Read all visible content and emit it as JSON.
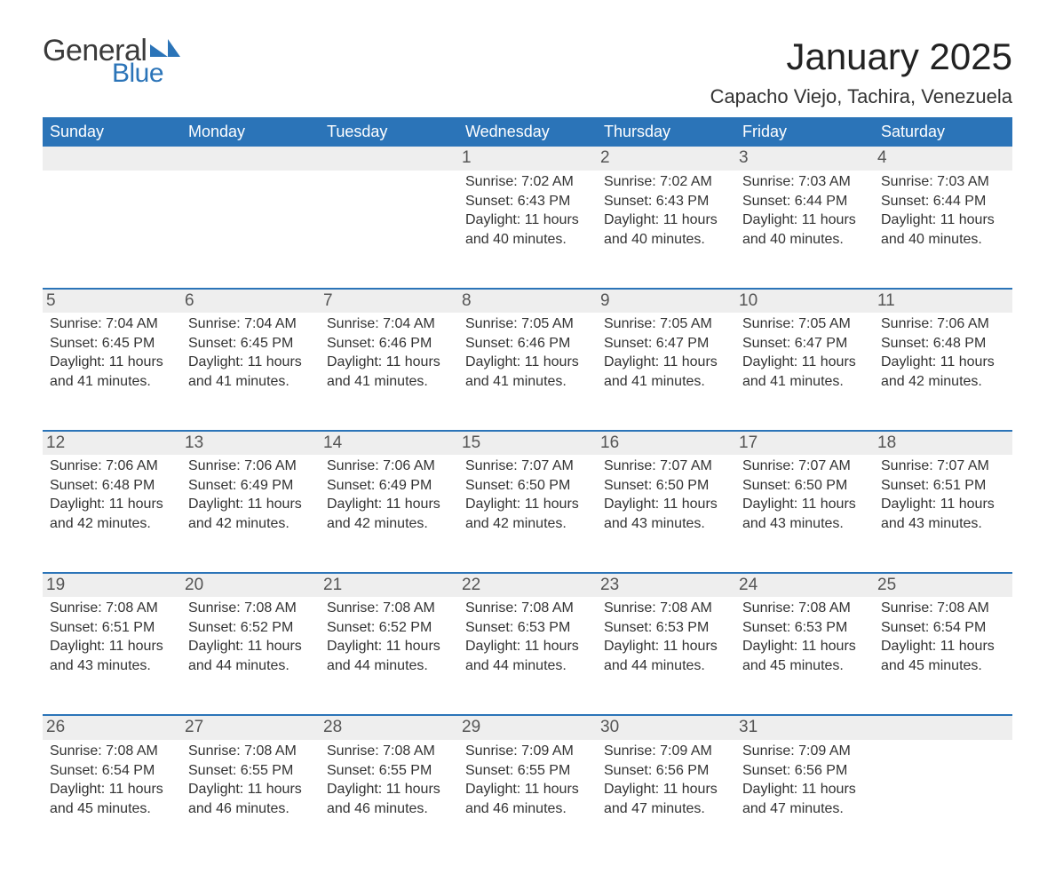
{
  "logo": {
    "word1": "General",
    "word2": "Blue",
    "brand_color": "#2b74b8",
    "text_color": "#3a3a3a"
  },
  "title": "January 2025",
  "subtitle": "Capacho Viejo, Tachira, Venezuela",
  "colors": {
    "header_bg": "#2b74b8",
    "header_text": "#ffffff",
    "daynum_bg": "#eeeeee",
    "rule": "#2b74b8",
    "body_text": "#333333",
    "page_bg": "#ffffff"
  },
  "fonts": {
    "title_size_pt": 32,
    "subtitle_size_pt": 17,
    "dow_size_pt": 14,
    "daynum_size_pt": 14,
    "info_size_pt": 12
  },
  "days_of_week": [
    "Sunday",
    "Monday",
    "Tuesday",
    "Wednesday",
    "Thursday",
    "Friday",
    "Saturday"
  ],
  "weeks": [
    [
      null,
      null,
      null,
      {
        "n": "1",
        "sunrise": "Sunrise: 7:02 AM",
        "sunset": "Sunset: 6:43 PM",
        "daylight": "Daylight: 11 hours and 40 minutes."
      },
      {
        "n": "2",
        "sunrise": "Sunrise: 7:02 AM",
        "sunset": "Sunset: 6:43 PM",
        "daylight": "Daylight: 11 hours and 40 minutes."
      },
      {
        "n": "3",
        "sunrise": "Sunrise: 7:03 AM",
        "sunset": "Sunset: 6:44 PM",
        "daylight": "Daylight: 11 hours and 40 minutes."
      },
      {
        "n": "4",
        "sunrise": "Sunrise: 7:03 AM",
        "sunset": "Sunset: 6:44 PM",
        "daylight": "Daylight: 11 hours and 40 minutes."
      }
    ],
    [
      {
        "n": "5",
        "sunrise": "Sunrise: 7:04 AM",
        "sunset": "Sunset: 6:45 PM",
        "daylight": "Daylight: 11 hours and 41 minutes."
      },
      {
        "n": "6",
        "sunrise": "Sunrise: 7:04 AM",
        "sunset": "Sunset: 6:45 PM",
        "daylight": "Daylight: 11 hours and 41 minutes."
      },
      {
        "n": "7",
        "sunrise": "Sunrise: 7:04 AM",
        "sunset": "Sunset: 6:46 PM",
        "daylight": "Daylight: 11 hours and 41 minutes."
      },
      {
        "n": "8",
        "sunrise": "Sunrise: 7:05 AM",
        "sunset": "Sunset: 6:46 PM",
        "daylight": "Daylight: 11 hours and 41 minutes."
      },
      {
        "n": "9",
        "sunrise": "Sunrise: 7:05 AM",
        "sunset": "Sunset: 6:47 PM",
        "daylight": "Daylight: 11 hours and 41 minutes."
      },
      {
        "n": "10",
        "sunrise": "Sunrise: 7:05 AM",
        "sunset": "Sunset: 6:47 PM",
        "daylight": "Daylight: 11 hours and 41 minutes."
      },
      {
        "n": "11",
        "sunrise": "Sunrise: 7:06 AM",
        "sunset": "Sunset: 6:48 PM",
        "daylight": "Daylight: 11 hours and 42 minutes."
      }
    ],
    [
      {
        "n": "12",
        "sunrise": "Sunrise: 7:06 AM",
        "sunset": "Sunset: 6:48 PM",
        "daylight": "Daylight: 11 hours and 42 minutes."
      },
      {
        "n": "13",
        "sunrise": "Sunrise: 7:06 AM",
        "sunset": "Sunset: 6:49 PM",
        "daylight": "Daylight: 11 hours and 42 minutes."
      },
      {
        "n": "14",
        "sunrise": "Sunrise: 7:06 AM",
        "sunset": "Sunset: 6:49 PM",
        "daylight": "Daylight: 11 hours and 42 minutes."
      },
      {
        "n": "15",
        "sunrise": "Sunrise: 7:07 AM",
        "sunset": "Sunset: 6:50 PM",
        "daylight": "Daylight: 11 hours and 42 minutes."
      },
      {
        "n": "16",
        "sunrise": "Sunrise: 7:07 AM",
        "sunset": "Sunset: 6:50 PM",
        "daylight": "Daylight: 11 hours and 43 minutes."
      },
      {
        "n": "17",
        "sunrise": "Sunrise: 7:07 AM",
        "sunset": "Sunset: 6:50 PM",
        "daylight": "Daylight: 11 hours and 43 minutes."
      },
      {
        "n": "18",
        "sunrise": "Sunrise: 7:07 AM",
        "sunset": "Sunset: 6:51 PM",
        "daylight": "Daylight: 11 hours and 43 minutes."
      }
    ],
    [
      {
        "n": "19",
        "sunrise": "Sunrise: 7:08 AM",
        "sunset": "Sunset: 6:51 PM",
        "daylight": "Daylight: 11 hours and 43 minutes."
      },
      {
        "n": "20",
        "sunrise": "Sunrise: 7:08 AM",
        "sunset": "Sunset: 6:52 PM",
        "daylight": "Daylight: 11 hours and 44 minutes."
      },
      {
        "n": "21",
        "sunrise": "Sunrise: 7:08 AM",
        "sunset": "Sunset: 6:52 PM",
        "daylight": "Daylight: 11 hours and 44 minutes."
      },
      {
        "n": "22",
        "sunrise": "Sunrise: 7:08 AM",
        "sunset": "Sunset: 6:53 PM",
        "daylight": "Daylight: 11 hours and 44 minutes."
      },
      {
        "n": "23",
        "sunrise": "Sunrise: 7:08 AM",
        "sunset": "Sunset: 6:53 PM",
        "daylight": "Daylight: 11 hours and 44 minutes."
      },
      {
        "n": "24",
        "sunrise": "Sunrise: 7:08 AM",
        "sunset": "Sunset: 6:53 PM",
        "daylight": "Daylight: 11 hours and 45 minutes."
      },
      {
        "n": "25",
        "sunrise": "Sunrise: 7:08 AM",
        "sunset": "Sunset: 6:54 PM",
        "daylight": "Daylight: 11 hours and 45 minutes."
      }
    ],
    [
      {
        "n": "26",
        "sunrise": "Sunrise: 7:08 AM",
        "sunset": "Sunset: 6:54 PM",
        "daylight": "Daylight: 11 hours and 45 minutes."
      },
      {
        "n": "27",
        "sunrise": "Sunrise: 7:08 AM",
        "sunset": "Sunset: 6:55 PM",
        "daylight": "Daylight: 11 hours and 46 minutes."
      },
      {
        "n": "28",
        "sunrise": "Sunrise: 7:08 AM",
        "sunset": "Sunset: 6:55 PM",
        "daylight": "Daylight: 11 hours and 46 minutes."
      },
      {
        "n": "29",
        "sunrise": "Sunrise: 7:09 AM",
        "sunset": "Sunset: 6:55 PM",
        "daylight": "Daylight: 11 hours and 46 minutes."
      },
      {
        "n": "30",
        "sunrise": "Sunrise: 7:09 AM",
        "sunset": "Sunset: 6:56 PM",
        "daylight": "Daylight: 11 hours and 47 minutes."
      },
      {
        "n": "31",
        "sunrise": "Sunrise: 7:09 AM",
        "sunset": "Sunset: 6:56 PM",
        "daylight": "Daylight: 11 hours and 47 minutes."
      },
      null
    ]
  ]
}
